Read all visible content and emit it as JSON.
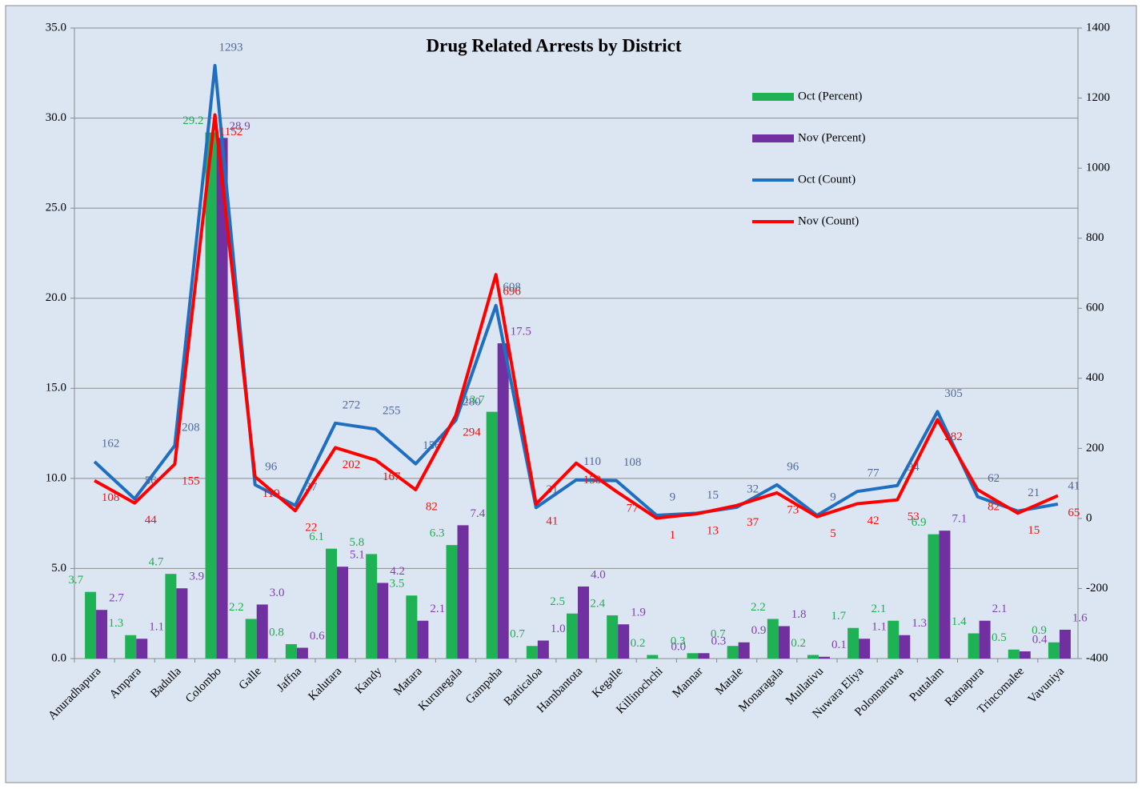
{
  "chart_data": {
    "type": "combo",
    "title": "Drug Related Arrests by  District",
    "categories": [
      "Anuradhapura",
      "Ampara",
      "Badulla",
      "Colombo",
      "Galle",
      "Jaffna",
      "Kalutara",
      "Kandy",
      "Matara",
      "Kurunegala",
      "Gampaha",
      "Batticaloa",
      "Hambantota",
      "Kegalle",
      "Killinochchi",
      "Mannar",
      "Matale",
      "Monaragala",
      "Mullativu",
      "Nuwara Eliya",
      "Polonnaruwa",
      "Puttalam",
      "Ratnapura",
      "Trincomalee",
      "Vavuniya"
    ],
    "series": [
      {
        "name": "Oct (Percent)",
        "type": "bar",
        "color": "#1fb254",
        "label_color": "#1fae50",
        "values": [
          3.7,
          1.3,
          4.7,
          29.2,
          2.2,
          0.8,
          6.1,
          5.8,
          3.5,
          6.3,
          13.7,
          0.7,
          2.5,
          2.4,
          0.2,
          0.3,
          0.7,
          2.2,
          0.2,
          1.7,
          2.1,
          6.9,
          1.4,
          0.5,
          0.9
        ],
        "value_labels": [
          "3.7",
          "1.3",
          "4.7",
          "29.2",
          "2.2",
          "0.8",
          "6.1",
          "5.8",
          "3.5",
          "6.3",
          "13.7",
          "0.7",
          "2.5",
          "2.4",
          "0.2",
          "0.3",
          "0.7",
          "2.2",
          "0.2",
          "1.7",
          "2.1",
          "6.9",
          "1.4",
          "0.5",
          "0.9"
        ]
      },
      {
        "name": "Nov (Percent)",
        "type": "bar",
        "color": "#7030a0",
        "label_color": "#7f3fb0",
        "values": [
          2.7,
          1.1,
          3.9,
          28.9,
          3.0,
          0.6,
          5.1,
          4.2,
          2.1,
          7.4,
          17.5,
          1.0,
          4.0,
          1.9,
          0.0,
          0.3,
          0.9,
          1.8,
          0.1,
          1.1,
          1.3,
          7.1,
          2.1,
          0.4,
          1.6
        ],
        "value_labels": [
          "2.7",
          "1.1",
          "3.9",
          "28.9",
          "3.0",
          "0.6",
          "5.1",
          "4.2",
          "2.1",
          "7.4",
          "17.5",
          "1.0",
          "4.0",
          "1.9",
          "0.0",
          "0.3",
          "0.9",
          "1.8",
          "0.1",
          "1.1",
          "1.3",
          "7.1",
          "2.1",
          "0.4",
          "1.6"
        ]
      },
      {
        "name": "Oct (Count)",
        "type": "line",
        "axis": "y2",
        "color": "#1f6fc0",
        "label_color": "#4f6a9a",
        "values": [
          162,
          56,
          208,
          1293,
          96,
          37,
          272,
          255,
          156,
          280,
          608,
          31,
          110,
          108,
          9,
          15,
          32,
          96,
          9,
          77,
          94,
          305,
          62,
          21,
          41
        ]
      },
      {
        "name": "Nov (Count)",
        "type": "line",
        "axis": "y2",
        "color": "#ff0000",
        "label_color": "#ee1111",
        "values": [
          108,
          44,
          155,
          1152,
          119,
          22,
          202,
          167,
          82,
          294,
          696,
          41,
          158,
          77,
          1,
          13,
          37,
          73,
          5,
          42,
          53,
          282,
          82,
          15,
          65
        ]
      }
    ],
    "ylim": [
      0,
      35
    ],
    "yticks": [
      {
        "value": 0,
        "label": "0.0"
      },
      {
        "value": 5,
        "label": "5.0"
      },
      {
        "value": 10,
        "label": "10.0"
      },
      {
        "value": 15,
        "label": "15.0"
      },
      {
        "value": 20,
        "label": "20.0"
      },
      {
        "value": 25,
        "label": "25.0"
      },
      {
        "value": 30,
        "label": "30.0"
      },
      {
        "value": 35,
        "label": "35.0"
      }
    ],
    "y2lim": [
      -400,
      1400
    ],
    "y2ticks": [
      -400,
      -200,
      0,
      200,
      400,
      600,
      800,
      1000,
      1200,
      1400
    ],
    "grid": true,
    "legend": "upper right"
  }
}
